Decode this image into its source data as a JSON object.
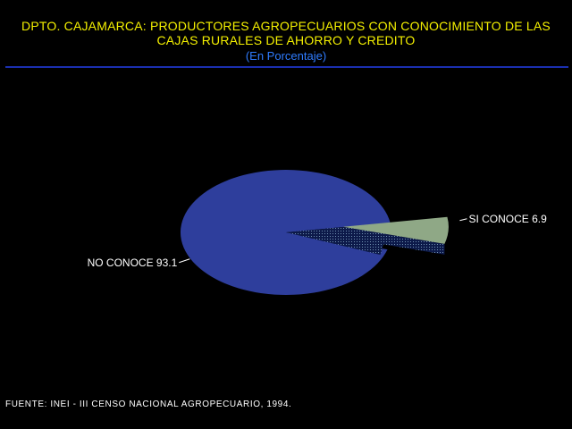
{
  "header": {
    "title_line1": "DPTO. CAJAMARCA: PRODUCTORES AGROPECUARIOS CON CONOCIMIENTO DE LAS",
    "title_line2": "CAJAS RURALES DE AHORRO Y CREDITO",
    "subtitle": "(En Porcentaje)"
  },
  "footer": {
    "source": "FUENTE: INEI - III CENSO NACIONAL AGROPECUARIO, 1994."
  },
  "colors": {
    "background": "#000000",
    "title": "#f4f000",
    "subtitle": "#2f7cff",
    "no_conoce": "#2e3e9c",
    "si_conoce": "#8fa886"
  },
  "chart_data": {
    "type": "pie",
    "categories": [
      "NO CONOCE",
      "SI CONOCE"
    ],
    "values": [
      93.1,
      6.9
    ],
    "labels": [
      "NO CONOCE 93.1",
      "SI CONOCE 6.9"
    ],
    "exploded": [
      "SI CONOCE"
    ]
  }
}
